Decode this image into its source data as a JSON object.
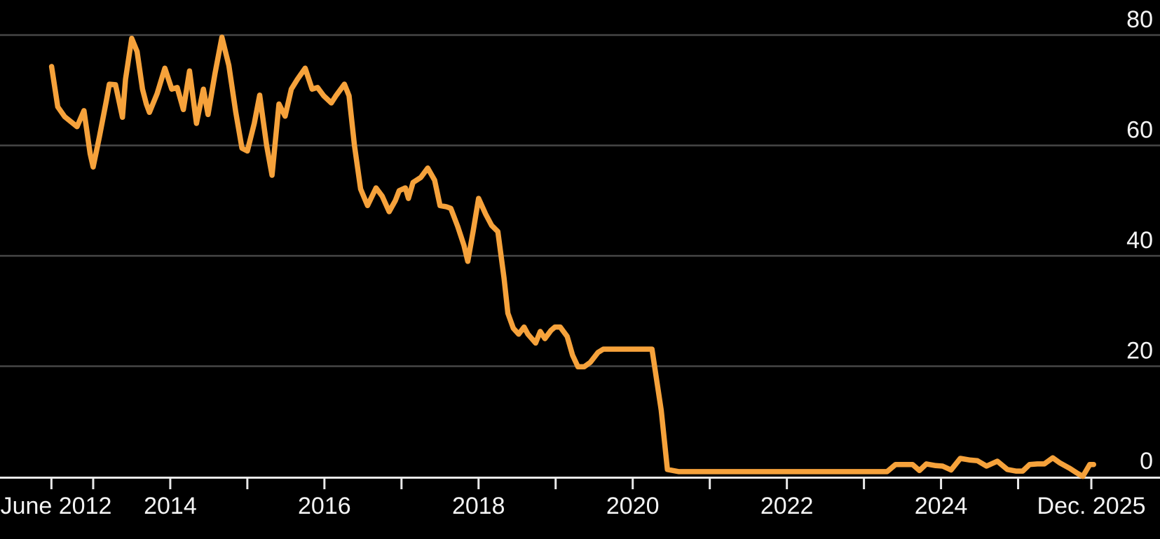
{
  "figure": {
    "background": "#000000",
    "text_color": "#f4f4f4",
    "axis_color": "#e9e9e9",
    "grid_color": "#474747",
    "line_color": "#f6a23b"
  },
  "chart_data": {
    "type": "line",
    "grid": true,
    "legend_position": "none",
    "xlim": [
      2011.791,
      2026.841
    ],
    "ylim": [
      0,
      80
    ],
    "y_ticks": [
      {
        "value": 80,
        "label": "80"
      },
      {
        "value": 60,
        "label": "60"
      },
      {
        "value": 40,
        "label": "40"
      },
      {
        "value": 20,
        "label": "20"
      },
      {
        "value": 0,
        "label": "0"
      }
    ],
    "x_ticks": [
      {
        "value": 2012.458,
        "label": "June 2012"
      },
      {
        "value": 2013,
        "label": ""
      },
      {
        "value": 2014,
        "label": "2014"
      },
      {
        "value": 2015,
        "label": ""
      },
      {
        "value": 2016,
        "label": "2016"
      },
      {
        "value": 2017,
        "label": ""
      },
      {
        "value": 2018,
        "label": "2018"
      },
      {
        "value": 2019,
        "label": ""
      },
      {
        "value": 2020,
        "label": "2020"
      },
      {
        "value": 2021,
        "label": ""
      },
      {
        "value": 2022,
        "label": "2022"
      },
      {
        "value": 2023,
        "label": ""
      },
      {
        "value": 2024,
        "label": "2024"
      },
      {
        "value": 2025,
        "label": ""
      },
      {
        "value": 2025.95,
        "label": "Dec. 2025"
      }
    ],
    "series": [
      {
        "name": "line",
        "color": "#f6a23b",
        "stroke_width": 7.5,
        "points": [
          [
            2012.46,
            74.3
          ],
          [
            2012.54,
            67.0
          ],
          [
            2012.63,
            65.2
          ],
          [
            2012.71,
            64.3
          ],
          [
            2012.79,
            63.4
          ],
          [
            2012.88,
            66.3
          ],
          [
            2012.96,
            58.5
          ],
          [
            2013.0,
            56.1
          ],
          [
            2013.08,
            61.5
          ],
          [
            2013.17,
            68.0
          ],
          [
            2013.21,
            71.1
          ],
          [
            2013.29,
            71.0
          ],
          [
            2013.38,
            65.1
          ],
          [
            2013.42,
            72.0
          ],
          [
            2013.5,
            79.4
          ],
          [
            2013.57,
            77.0
          ],
          [
            2013.64,
            70.2
          ],
          [
            2013.69,
            67.5
          ],
          [
            2013.73,
            66.0
          ],
          [
            2013.83,
            69.4
          ],
          [
            2013.93,
            74.0
          ],
          [
            2014.02,
            70.2
          ],
          [
            2014.09,
            70.5
          ],
          [
            2014.17,
            66.5
          ],
          [
            2014.25,
            73.5
          ],
          [
            2014.34,
            64.0
          ],
          [
            2014.43,
            70.2
          ],
          [
            2014.49,
            65.6
          ],
          [
            2014.58,
            73.0
          ],
          [
            2014.67,
            79.6
          ],
          [
            2014.76,
            74.5
          ],
          [
            2014.85,
            66.0
          ],
          [
            2014.93,
            59.5
          ],
          [
            2015.0,
            59.0
          ],
          [
            2015.09,
            64.0
          ],
          [
            2015.16,
            69.1
          ],
          [
            2015.25,
            60.0
          ],
          [
            2015.32,
            54.6
          ],
          [
            2015.41,
            67.5
          ],
          [
            2015.49,
            65.3
          ],
          [
            2015.57,
            70.2
          ],
          [
            2015.65,
            72.0
          ],
          [
            2015.75,
            74.0
          ],
          [
            2015.84,
            70.2
          ],
          [
            2015.91,
            70.5
          ],
          [
            2015.99,
            69.0
          ],
          [
            2016.09,
            67.7
          ],
          [
            2016.15,
            69.0
          ],
          [
            2016.26,
            71.1
          ],
          [
            2016.32,
            69.0
          ],
          [
            2016.39,
            60.0
          ],
          [
            2016.47,
            52.1
          ],
          [
            2016.56,
            49.1
          ],
          [
            2016.67,
            52.3
          ],
          [
            2016.75,
            50.8
          ],
          [
            2016.84,
            48.0
          ],
          [
            2016.92,
            50.0
          ],
          [
            2016.97,
            51.8
          ],
          [
            2017.05,
            52.3
          ],
          [
            2017.09,
            50.4
          ],
          [
            2017.15,
            53.3
          ],
          [
            2017.25,
            54.2
          ],
          [
            2017.34,
            55.9
          ],
          [
            2017.43,
            53.7
          ],
          [
            2017.5,
            49.1
          ],
          [
            2017.58,
            48.9
          ],
          [
            2017.64,
            48.6
          ],
          [
            2017.73,
            45.3
          ],
          [
            2017.81,
            41.9
          ],
          [
            2017.86,
            39.0
          ],
          [
            2017.93,
            44.5
          ],
          [
            2018.0,
            50.4
          ],
          [
            2018.09,
            47.6
          ],
          [
            2018.17,
            45.5
          ],
          [
            2018.25,
            44.4
          ],
          [
            2018.33,
            36.0
          ],
          [
            2018.38,
            29.6
          ],
          [
            2018.45,
            26.9
          ],
          [
            2018.52,
            25.8
          ],
          [
            2018.59,
            27.1
          ],
          [
            2018.64,
            25.8
          ],
          [
            2018.74,
            24.2
          ],
          [
            2018.8,
            26.3
          ],
          [
            2018.86,
            25.0
          ],
          [
            2018.94,
            26.5
          ],
          [
            2018.99,
            27.1
          ],
          [
            2019.06,
            27.1
          ],
          [
            2019.15,
            25.4
          ],
          [
            2019.22,
            22.0
          ],
          [
            2019.29,
            19.9
          ],
          [
            2019.37,
            19.9
          ],
          [
            2019.45,
            20.7
          ],
          [
            2019.55,
            22.5
          ],
          [
            2019.62,
            23.1
          ],
          [
            2019.8,
            23.1
          ],
          [
            2020.0,
            23.1
          ],
          [
            2020.25,
            23.1
          ],
          [
            2020.37,
            12.0
          ],
          [
            2020.45,
            1.3
          ],
          [
            2020.6,
            0.9
          ],
          [
            2021.0,
            0.9
          ],
          [
            2021.5,
            0.9
          ],
          [
            2022.0,
            0.9
          ],
          [
            2022.5,
            0.9
          ],
          [
            2023.0,
            0.9
          ],
          [
            2023.3,
            0.9
          ],
          [
            2023.41,
            2.2
          ],
          [
            2023.52,
            2.2
          ],
          [
            2023.63,
            2.2
          ],
          [
            2023.72,
            1.1
          ],
          [
            2023.81,
            2.3
          ],
          [
            2023.93,
            2.0
          ],
          [
            2024.02,
            1.9
          ],
          [
            2024.13,
            1.2
          ],
          [
            2024.25,
            3.3
          ],
          [
            2024.38,
            3.0
          ],
          [
            2024.47,
            2.9
          ],
          [
            2024.59,
            1.9
          ],
          [
            2024.73,
            2.8
          ],
          [
            2024.86,
            1.3
          ],
          [
            2024.97,
            1.0
          ],
          [
            2025.06,
            1.0
          ],
          [
            2025.15,
            2.2
          ],
          [
            2025.25,
            2.3
          ],
          [
            2025.34,
            2.3
          ],
          [
            2025.45,
            3.4
          ],
          [
            2025.54,
            2.5
          ],
          [
            2025.67,
            1.5
          ],
          [
            2025.77,
            0.6
          ],
          [
            2025.84,
            0.05
          ],
          [
            2025.93,
            2.2
          ],
          [
            2025.98,
            2.2
          ]
        ]
      }
    ]
  }
}
